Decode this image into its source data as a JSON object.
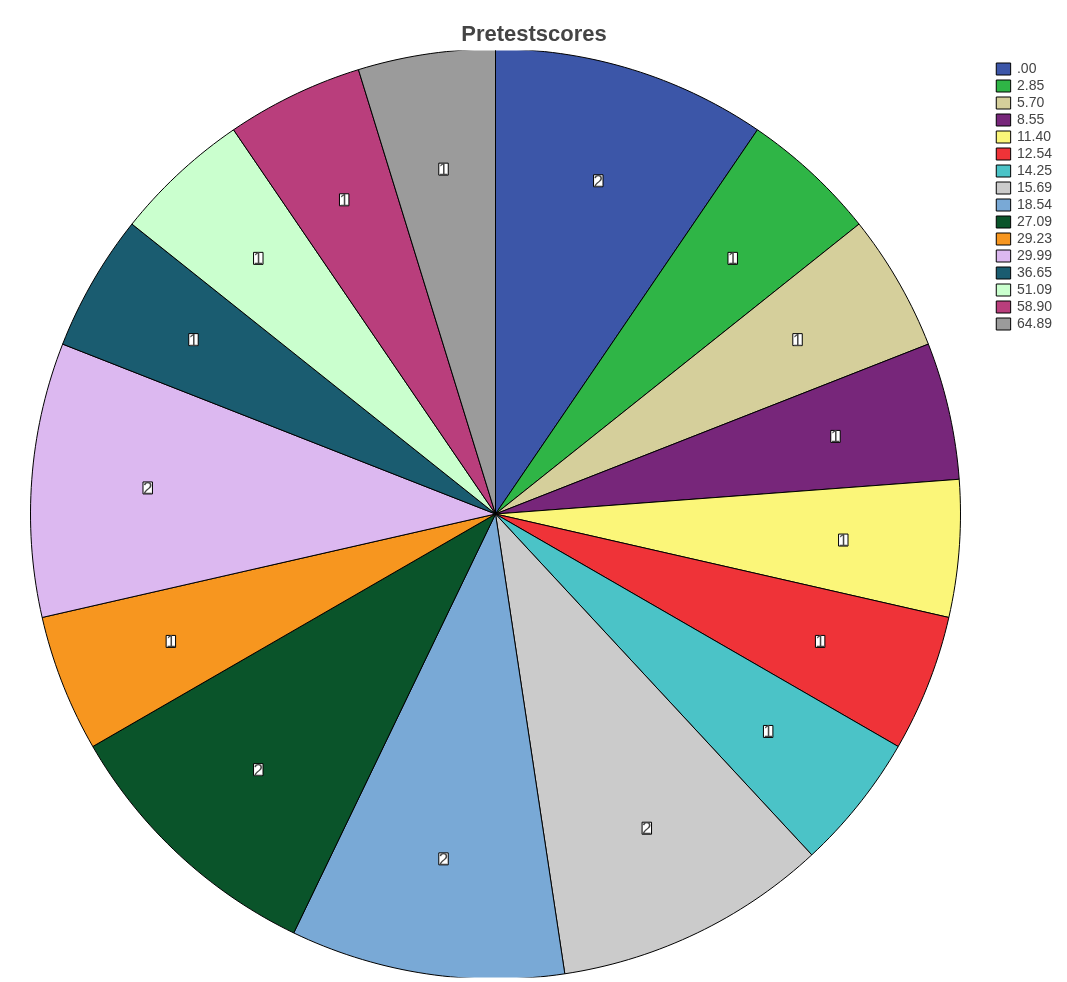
{
  "chart_data": {
    "type": "pie",
    "title": "Pretestscores",
    "categories": [
      ".00",
      "2.85",
      "5.70",
      "8.55",
      "11.40",
      "12.54",
      "14.25",
      "15.69",
      "18.54",
      "27.09",
      "29.23",
      "29.99",
      "36.65",
      "51.09",
      "58.90",
      "64.89"
    ],
    "values": [
      2,
      1,
      1,
      1,
      1,
      1,
      1,
      2,
      2,
      2,
      1,
      2,
      1,
      1,
      1,
      1
    ],
    "colors": [
      "#3c56a8",
      "#2fb546",
      "#d5cf9b",
      "#77267a",
      "#fbf679",
      "#ef3338",
      "#4bc3c7",
      "#cbcbcb",
      "#79a9d6",
      "#0a542a",
      "#f7961f",
      "#dcb8f0",
      "#1a5c70",
      "#caffce",
      "#b93e7c",
      "#9b9b9b"
    ],
    "data_labels": true,
    "legend": "top right"
  }
}
